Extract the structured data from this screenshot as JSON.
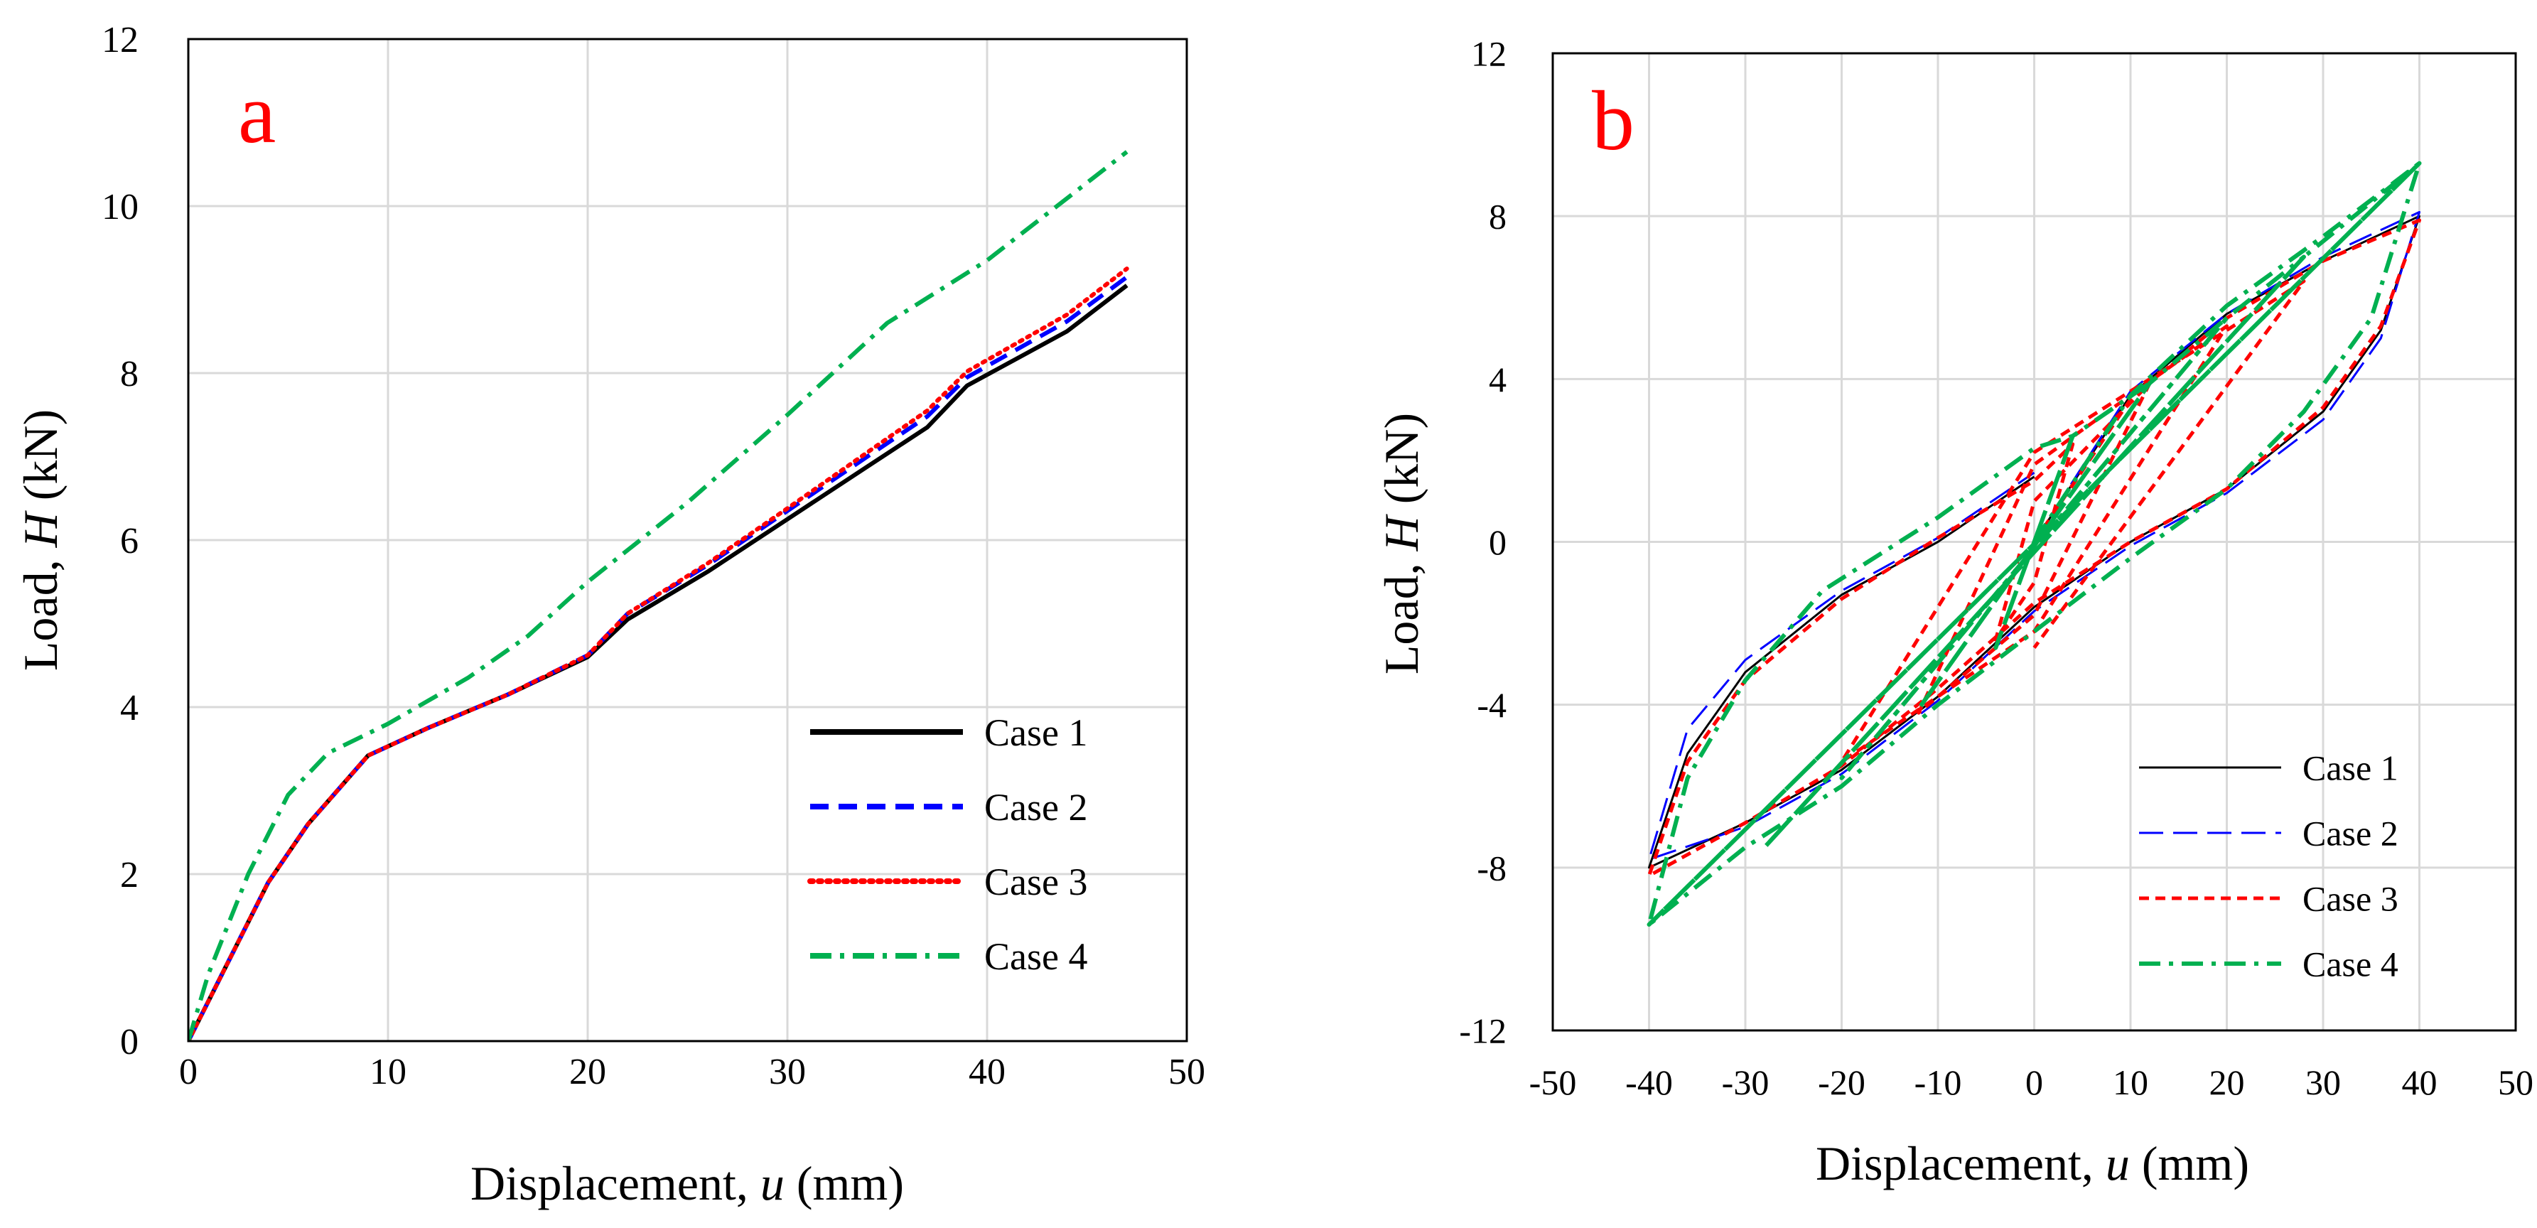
{
  "chart_data": [
    {
      "type": "line",
      "panel_label": "a",
      "xlabel_prefix": "Displacement, ",
      "xlabel_var": "u",
      "xlabel_suffix": " (mm)",
      "ylabel_prefix": "Load, ",
      "ylabel_var": "H",
      "ylabel_suffix": " (kN)",
      "xlim": [
        0,
        50
      ],
      "ylim": [
        0,
        12
      ],
      "xticks": [
        0,
        10,
        20,
        30,
        40,
        50
      ],
      "yticks": [
        0,
        2,
        4,
        6,
        8,
        10,
        12
      ],
      "xtick_labels": [
        "0",
        "10",
        "20",
        "30",
        "40",
        "50"
      ],
      "ytick_labels": [
        "0",
        "2",
        "4",
        "6",
        "8",
        "10",
        "12"
      ],
      "grid": true,
      "legend_position": "bottom-right",
      "series": [
        {
          "name": "Case 1",
          "color": "#000000",
          "dash": "solid",
          "x": [
            0,
            2,
            4,
            6,
            9,
            12,
            16,
            20,
            22,
            26,
            30,
            34,
            37,
            39,
            44,
            47
          ],
          "y": [
            0,
            0.95,
            1.9,
            2.6,
            3.42,
            3.75,
            4.15,
            4.6,
            5.05,
            5.62,
            6.25,
            6.88,
            7.35,
            7.85,
            8.5,
            9.05
          ]
        },
        {
          "name": "Case 2",
          "color": "#0000ff",
          "dash": "dashed",
          "x": [
            0,
            2,
            4,
            6,
            9,
            12,
            16,
            20,
            22,
            26,
            30,
            34,
            37,
            39,
            44,
            47
          ],
          "y": [
            0,
            0.95,
            1.9,
            2.6,
            3.42,
            3.75,
            4.15,
            4.62,
            5.12,
            5.7,
            6.35,
            7.0,
            7.48,
            7.95,
            8.62,
            9.15
          ]
        },
        {
          "name": "Case 3",
          "color": "#ff0000",
          "dash": "dotted",
          "x": [
            0,
            2,
            4,
            6,
            9,
            12,
            16,
            20,
            22,
            26,
            30,
            34,
            37,
            39,
            44,
            47
          ],
          "y": [
            0,
            0.95,
            1.9,
            2.6,
            3.42,
            3.75,
            4.15,
            4.62,
            5.12,
            5.72,
            6.38,
            7.05,
            7.55,
            8.02,
            8.7,
            9.25
          ]
        },
        {
          "name": "Case 4",
          "color": "#00b050",
          "dash": "dashdot",
          "x": [
            0,
            1,
            3,
            5,
            7,
            10,
            14,
            17,
            20,
            25,
            30,
            35,
            40,
            47
          ],
          "y": [
            0,
            0.8,
            2.0,
            2.95,
            3.45,
            3.8,
            4.35,
            4.85,
            5.5,
            6.45,
            7.5,
            8.6,
            9.35,
            10.65
          ]
        }
      ]
    },
    {
      "type": "line",
      "panel_label": "b",
      "xlabel_prefix": "Displacement, ",
      "xlabel_var": "u",
      "xlabel_suffix": " (mm)",
      "ylabel_prefix": "Load, ",
      "ylabel_var": "H",
      "ylabel_suffix": " (kN)",
      "xlim": [
        -50,
        50
      ],
      "ylim": [
        -12,
        12
      ],
      "xticks": [
        -50,
        -40,
        -30,
        -20,
        -10,
        0,
        10,
        20,
        30,
        40,
        50
      ],
      "yticks": [
        -12,
        -8,
        -4,
        0,
        4,
        8,
        12
      ],
      "xtick_labels": [
        "-50",
        "-40",
        "-30",
        "-20",
        "-10",
        "0",
        "10",
        "20",
        "30",
        "40",
        "50"
      ],
      "ytick_labels": [
        "-12",
        "-8",
        "-4",
        "0",
        "4",
        "8",
        "12"
      ],
      "grid": true,
      "legend_position": "bottom-right",
      "series": [
        {
          "name": "Case 1",
          "color": "#000000",
          "dash": "solid",
          "width": 3,
          "x": [
            0,
            10,
            20,
            30,
            40,
            36,
            30,
            20,
            10,
            0,
            -10,
            -20,
            -30,
            -40,
            -36,
            -30,
            -20,
            -10,
            0
          ],
          "y": [
            0,
            3.6,
            5.6,
            6.9,
            8.0,
            5.2,
            3.2,
            1.3,
            0,
            -1.6,
            -3.8,
            -5.6,
            -6.9,
            -8.0,
            -5.2,
            -3.2,
            -1.3,
            0,
            1.6
          ]
        },
        {
          "name": "Case 2",
          "color": "#0000ff",
          "dash": "longdash",
          "width": 3,
          "x": [
            0,
            10,
            20,
            30,
            40,
            36,
            30,
            20,
            10,
            0,
            -10,
            -20,
            -30,
            -40,
            -36,
            -30,
            -20,
            -10,
            0
          ],
          "y": [
            0,
            3.7,
            5.6,
            7.0,
            8.1,
            5.0,
            3.0,
            1.2,
            -0.1,
            -1.7,
            -3.9,
            -5.7,
            -7.0,
            -7.8,
            -4.6,
            -2.9,
            -1.2,
            0.1,
            1.7
          ]
        },
        {
          "name": "Case 3",
          "color": "#ff0000",
          "dash": "shortdash",
          "width": 5,
          "x": [
            0,
            10,
            20,
            30,
            40,
            36,
            30,
            20,
            10,
            0,
            -10,
            -20,
            -30,
            -40,
            -36,
            -30,
            -20,
            -10,
            0,
            4,
            0,
            -4,
            0,
            12,
            0,
            -12,
            0,
            20,
            0,
            -20,
            0,
            28,
            0
          ],
          "y": [
            0,
            3.5,
            5.5,
            6.9,
            7.9,
            5.3,
            3.3,
            1.3,
            0,
            -1.5,
            -3.6,
            -5.5,
            -6.9,
            -8.2,
            -5.4,
            -3.4,
            -1.4,
            0.1,
            1.5,
            2.4,
            -1.0,
            -2.4,
            1.0,
            3.9,
            -1.8,
            -4.2,
            1.9,
            5.3,
            -2.2,
            -5.4,
            2.2,
            6.4,
            -2.6
          ]
        },
        {
          "name": "Case 4",
          "color": "#00b050",
          "dash": "dashdot",
          "width": 6,
          "x": [
            0,
            10,
            20,
            30,
            40,
            35,
            28,
            20,
            10,
            0,
            -10,
            -20,
            -30,
            -40,
            -36,
            -30,
            -22,
            -10,
            0,
            4,
            -4,
            4,
            12,
            -12,
            12,
            20,
            -20,
            20,
            28,
            -28,
            28,
            40,
            -40,
            40
          ],
          "y": [
            0,
            3.6,
            5.8,
            7.5,
            9.3,
            5.5,
            3.2,
            1.3,
            -0.4,
            -2.2,
            -4.0,
            -6.0,
            -7.5,
            -9.4,
            -5.8,
            -3.4,
            -1.2,
            0.6,
            2.3,
            2.6,
            -2.6,
            2.6,
            3.9,
            -4.1,
            3.9,
            5.5,
            -5.8,
            5.5,
            7.0,
            -7.5,
            7.0,
            9.3,
            -9.4,
            9.3
          ]
        }
      ]
    }
  ]
}
